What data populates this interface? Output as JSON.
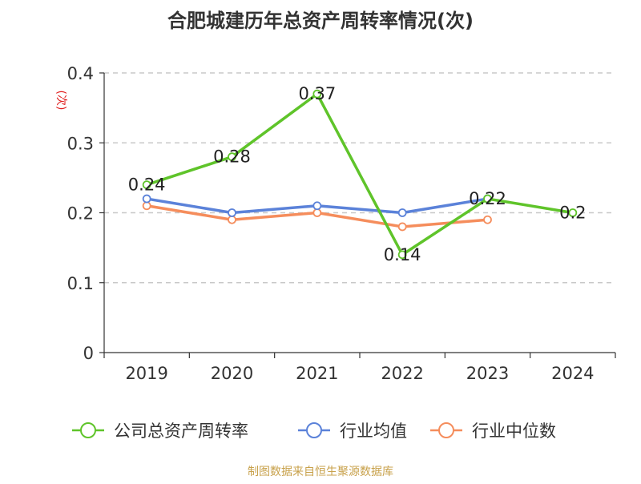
{
  "chart_data": {
    "type": "line",
    "title": "合肥城建历年总资产周转率情况(次)",
    "ylabel": "(次)",
    "categories": [
      "2019",
      "2020",
      "2021",
      "2022",
      "2023",
      "2024"
    ],
    "ylim": [
      0,
      0.4
    ],
    "yticks": [
      "0",
      "0.1",
      "0.2",
      "0.3",
      "0.4"
    ],
    "grid": true,
    "legend_position": "bottom",
    "series": [
      {
        "name": "公司总资产周转率",
        "color": "#5fc42a",
        "values": [
          0.24,
          0.28,
          0.37,
          0.14,
          0.22,
          0.2
        ],
        "labels": [
          "0.24",
          "0.28",
          "0.37",
          "0.14",
          "0.22",
          "0.2"
        ]
      },
      {
        "name": "行业均值",
        "color": "#5b82d9",
        "values": [
          0.22,
          0.2,
          0.21,
          0.2,
          0.22,
          null
        ]
      },
      {
        "name": "行业中位数",
        "color": "#f58d5c",
        "values": [
          0.21,
          0.19,
          0.2,
          0.18,
          0.19,
          null
        ]
      }
    ]
  },
  "footer": "制图数据来自恒生聚源数据库",
  "colors": {
    "ylabel": "#e02020",
    "footer": "#c8a14b",
    "axis": "#333333",
    "grid": "#c8c8c8"
  }
}
